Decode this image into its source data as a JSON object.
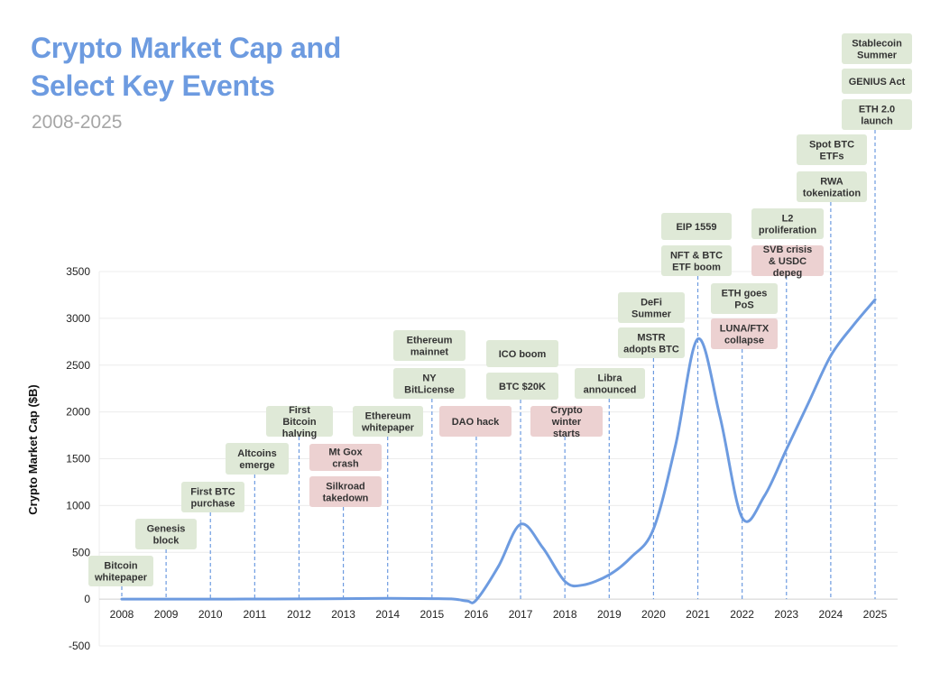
{
  "chart_data": {
    "type": "line",
    "title": "Crypto Market Cap and Select Key Events",
    "subtitle": "2008-2025",
    "xlabel": "",
    "ylabel": "Crypto Market Cap ($B)",
    "ylim": [
      -500,
      3500
    ],
    "yticks": [
      -500,
      0,
      500,
      1000,
      1500,
      2000,
      2500,
      3000,
      3500
    ],
    "xlim": [
      2008,
      2025
    ],
    "x": [
      2008,
      2009,
      2010,
      2011,
      2012,
      2013,
      2014,
      2015,
      2015.5,
      2015.8,
      2016,
      2016.5,
      2017,
      2017.5,
      2018,
      2018.4,
      2019,
      2019.5,
      2020,
      2020.5,
      2021,
      2021.5,
      2022,
      2022.5,
      2023,
      2023.5,
      2024,
      2024.5,
      2025
    ],
    "values": [
      0,
      0,
      0,
      1,
      2,
      5,
      8,
      5,
      0,
      -20,
      -10,
      350,
      800,
      550,
      190,
      150,
      260,
      450,
      750,
      1650,
      2780,
      1950,
      870,
      1100,
      1600,
      2100,
      2600,
      2920,
      3200
    ],
    "series_color": "#6d9be0",
    "grid": true,
    "events": [
      {
        "label": "Bitcoin whitepaper",
        "year": 2008,
        "category": "positive"
      },
      {
        "label": "Genesis block",
        "year": 2009,
        "category": "positive"
      },
      {
        "label": "First BTC purchase",
        "year": 2010,
        "category": "positive"
      },
      {
        "label": "Altcoins emerge",
        "year": 2011,
        "category": "positive"
      },
      {
        "label": "First Bitcoin halving",
        "year": 2012,
        "category": "positive"
      },
      {
        "label": "Mt Gox crash",
        "year": 2013,
        "category": "negative"
      },
      {
        "label": "Silkroad takedown",
        "year": 2013,
        "category": "negative"
      },
      {
        "label": "Ethereum whitepaper",
        "year": 2014,
        "category": "positive"
      },
      {
        "label": "Ethereum mainnet",
        "year": 2015,
        "category": "positive"
      },
      {
        "label": "NY BitLicense",
        "year": 2015,
        "category": "positive"
      },
      {
        "label": "DAO hack",
        "year": 2016,
        "category": "negative"
      },
      {
        "label": "ICO boom",
        "year": 2017,
        "category": "positive"
      },
      {
        "label": "BTC $20K",
        "year": 2017,
        "category": "positive"
      },
      {
        "label": "Crypto winter starts",
        "year": 2018,
        "category": "negative"
      },
      {
        "label": "Libra announced",
        "year": 2019,
        "category": "positive"
      },
      {
        "label": "DeFi Summer",
        "year": 2020,
        "category": "positive"
      },
      {
        "label": "MSTR adopts BTC",
        "year": 2020,
        "category": "positive"
      },
      {
        "label": "EIP 1559",
        "year": 2021,
        "category": "positive"
      },
      {
        "label": "NFT & BTC ETF boom",
        "year": 2021,
        "category": "positive"
      },
      {
        "label": "ETH goes PoS",
        "year": 2022,
        "category": "positive"
      },
      {
        "label": "LUNA/FTX collapse",
        "year": 2022,
        "category": "negative"
      },
      {
        "label": "L2 proliferation",
        "year": 2023,
        "category": "positive"
      },
      {
        "label": "SVB crisis & USDC depeg",
        "year": 2023,
        "category": "negative"
      },
      {
        "label": "Spot BTC ETFs",
        "year": 2024,
        "category": "positive"
      },
      {
        "label": "RWA tokenization",
        "year": 2024,
        "category": "positive"
      },
      {
        "label": "Stablecoin Summer",
        "year": 2025,
        "category": "positive"
      },
      {
        "label": "GENIUS Act",
        "year": 2025,
        "category": "positive"
      },
      {
        "label": "ETH 2.0 launch",
        "year": 2025,
        "category": "positive"
      }
    ],
    "colors": {
      "positive": "#dfe9d7",
      "negative": "#ecd1d1",
      "grid": "#ececec",
      "axis": "#d0d0d0",
      "connector": "#6d9be0"
    }
  }
}
